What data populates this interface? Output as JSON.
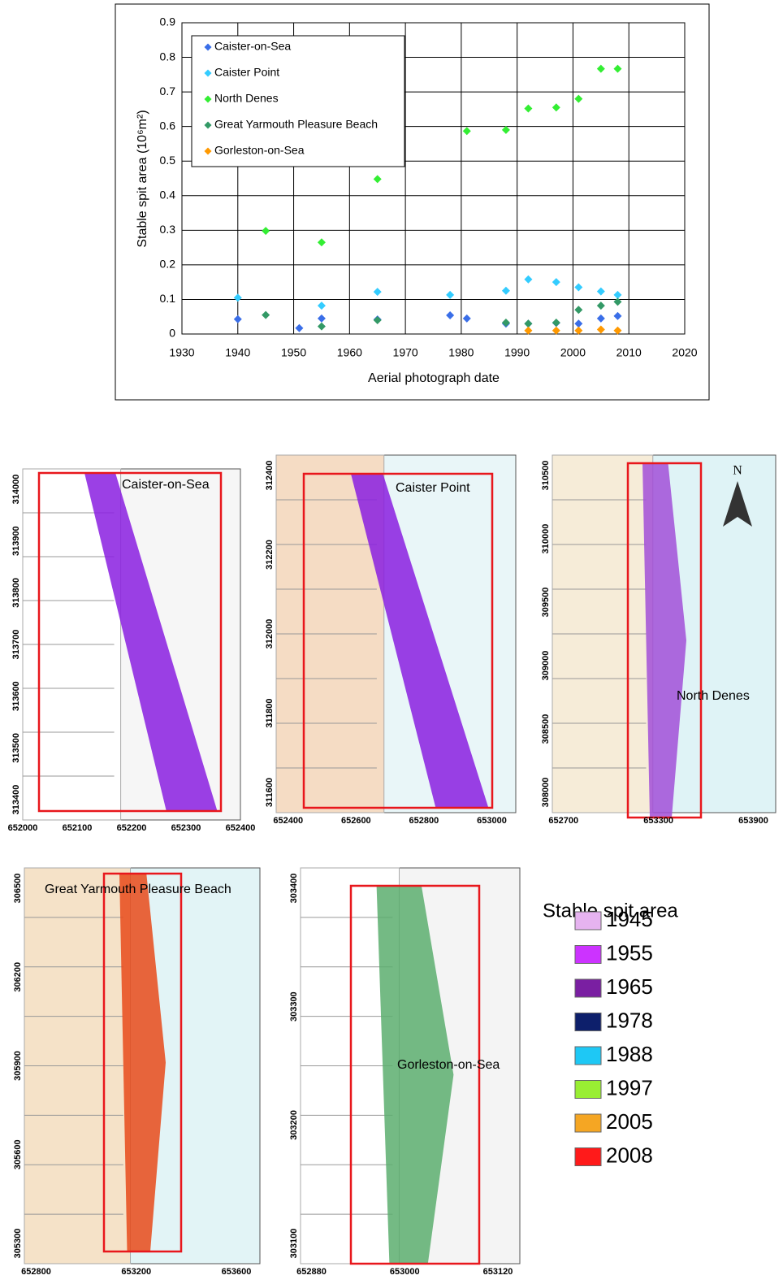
{
  "chart_data": {
    "type": "scatter",
    "x_label": "Aerial photograph date",
    "y_label": "Stable spit area (10⁶m²)",
    "xlim": [
      1930,
      2020
    ],
    "xticks": [
      1930,
      1940,
      1950,
      1960,
      1970,
      1980,
      1990,
      2000,
      2010,
      2020
    ],
    "ylim": [
      0,
      0.9
    ],
    "yticks": [
      0,
      0.1,
      0.2,
      0.3,
      0.4,
      0.5,
      0.6,
      0.7,
      0.8,
      0.9
    ],
    "grid": true,
    "legend": "upper left",
    "series": [
      {
        "name": "Caister-on-Sea",
        "color": "#3a6ee8",
        "x": [
          1940,
          1951,
          1955,
          1965,
          1978,
          1981,
          1988,
          1992,
          1997,
          2001,
          2005,
          2008
        ],
        "values": [
          0.043,
          0.017,
          0.045,
          0.042,
          0.054,
          0.045,
          0.03,
          0.03,
          0.032,
          0.03,
          0.045,
          0.052
        ]
      },
      {
        "name": "Caister Point",
        "color": "#33ccff",
        "x": [
          1940,
          1955,
          1965,
          1978,
          1988,
          1992,
          1997,
          2001,
          2005,
          2008
        ],
        "values": [
          0.105,
          0.082,
          0.122,
          0.113,
          0.125,
          0.158,
          0.15,
          0.135,
          0.123,
          0.113
        ]
      },
      {
        "name": "North Denes",
        "color": "#33ee33",
        "x": [
          1945,
          1955,
          1965,
          1981,
          1988,
          1992,
          1997,
          2001,
          2005,
          2008
        ],
        "values": [
          0.298,
          0.265,
          0.448,
          0.587,
          0.59,
          0.652,
          0.655,
          0.68,
          0.767,
          0.767
        ]
      },
      {
        "name": "Great Yarmouth Pleasure Beach",
        "color": "#339966",
        "x": [
          1945,
          1955,
          1965,
          1988,
          1992,
          1997,
          2001,
          2005,
          2008
        ],
        "values": [
          0.055,
          0.022,
          0.04,
          0.033,
          0.03,
          0.033,
          0.07,
          0.082,
          0.093
        ]
      },
      {
        "name": "Gorleston-on-Sea",
        "color": "#ff9900",
        "x": [
          1992,
          1997,
          2001,
          2005,
          2008
        ],
        "values": [
          0.01,
          0.01,
          0.01,
          0.013,
          0.01
        ]
      }
    ]
  },
  "maps": [
    {
      "label": "Caister-on-Sea",
      "x_labels": [
        "652000",
        "652100",
        "652200",
        "652300",
        "652400"
      ],
      "y_labels": [
        "314000",
        "313900",
        "313800",
        "313700",
        "313600",
        "313500",
        "313400"
      ]
    },
    {
      "label": "Caister Point",
      "x_labels": [
        "652400",
        "652600",
        "652800",
        "653000"
      ],
      "y_labels": [
        "312400",
        "312200",
        "312000",
        "311800",
        "311600"
      ]
    },
    {
      "label": "North Denes",
      "x_labels": [
        "652700",
        "653300",
        "653900"
      ],
      "y_labels": [
        "310500",
        "310000",
        "309500",
        "309000",
        "308500",
        "308000"
      ]
    },
    {
      "label": "Great Yarmouth Pleasure Beach",
      "x_labels": [
        "652800",
        "653200",
        "653600"
      ],
      "y_labels": [
        "306500",
        "306200",
        "305900",
        "305600",
        "305300"
      ]
    },
    {
      "label": "Gorleston-on-Sea",
      "x_labels": [
        "652880",
        "653000",
        "653120"
      ],
      "y_labels": [
        "303400",
        "303300",
        "303200",
        "303100"
      ]
    }
  ],
  "north_arrow": "N",
  "map_legend": {
    "title": "Stable spit area",
    "items": [
      {
        "label": "1945",
        "color": "#e6b3f0"
      },
      {
        "label": "1955",
        "color": "#cc33ff"
      },
      {
        "label": "1965",
        "color": "#7a1fa2"
      },
      {
        "label": "1978",
        "color": "#0d1f6b"
      },
      {
        "label": "1988",
        "color": "#1ec8f5"
      },
      {
        "label": "1997",
        "color": "#99ee33"
      },
      {
        "label": "2005",
        "color": "#f5a623"
      },
      {
        "label": "2008",
        "color": "#ff1a1a"
      }
    ]
  }
}
